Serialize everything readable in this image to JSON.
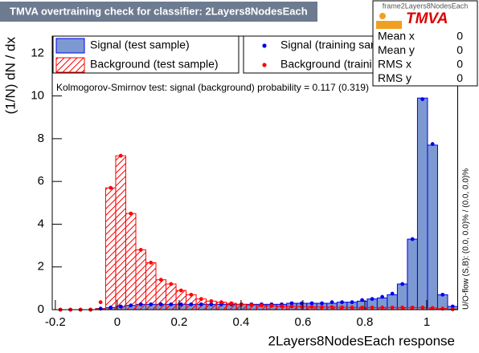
{
  "chart_data": {
    "type": "histogram",
    "title": "TMVA overtraining check for classifier: 2Layers8NodesEach",
    "x_label": "2Layers8NodesEach response",
    "y_label": "(1/N) dN / dx",
    "annotation": "Kolmogorov-Smirnov test: signal (background) probability = 0.117 (0.319)",
    "side_note": "U/O-flow (S,B): (0.0, 0.0)% / (0.0, 0.0)%",
    "xlim": [
      -0.21,
      1.1
    ],
    "ylim": [
      0,
      12.8
    ],
    "xticks": [
      -0.2,
      0,
      0.2,
      0.4,
      0.6,
      0.8,
      1
    ],
    "yticks": [
      0,
      2,
      4,
      6,
      8,
      10,
      12
    ],
    "bins": [
      -0.2,
      -0.1675,
      -0.135,
      -0.1025,
      -0.07,
      -0.0375,
      -0.005,
      0.0275,
      0.06,
      0.0925,
      0.125,
      0.1575,
      0.19,
      0.2225,
      0.255,
      0.2875,
      0.32,
      0.3525,
      0.385,
      0.4175,
      0.45,
      0.4825,
      0.515,
      0.5475,
      0.58,
      0.6125,
      0.645,
      0.6775,
      0.71,
      0.7425,
      0.775,
      0.8075,
      0.84,
      0.8725,
      0.905,
      0.9375,
      0.97,
      1.0025,
      1.035,
      1.0675,
      1.1
    ],
    "series": [
      {
        "name": "Signal (test sample)",
        "style": "filled",
        "color": "#0000ee",
        "fill": "#7d99d1",
        "values": [
          0,
          0,
          0,
          0,
          0.05,
          0.1,
          0.15,
          0.2,
          0.25,
          0.25,
          0.25,
          0.25,
          0.25,
          0.25,
          0.25,
          0.25,
          0.25,
          0.25,
          0.25,
          0.25,
          0.25,
          0.25,
          0.25,
          0.3,
          0.3,
          0.3,
          0.3,
          0.3,
          0.35,
          0.35,
          0.4,
          0.5,
          0.55,
          0.7,
          1.2,
          3.3,
          9.9,
          7.7,
          0.7,
          0.15
        ]
      },
      {
        "name": "Background (test sample)",
        "style": "hatched",
        "color": "#ff0000",
        "values": [
          0,
          0,
          0,
          0,
          0.05,
          5.7,
          7.2,
          4.5,
          2.8,
          2.2,
          1.4,
          1.2,
          0.9,
          0.7,
          0.5,
          0.4,
          0.35,
          0.3,
          0.25,
          0.22,
          0.2,
          0.18,
          0.16,
          0.15,
          0.14,
          0.13,
          0.12,
          0.12,
          0.11,
          0.1,
          0.1,
          0.1,
          0.1,
          0.1,
          0.1,
          0.1,
          0.1,
          0.08,
          0.05,
          0.02
        ]
      },
      {
        "name": "Signal (training sample)",
        "style": "points",
        "color": "#0000ee",
        "values": [
          0,
          0,
          0,
          0,
          0.05,
          0.1,
          0.15,
          0.2,
          0.25,
          0.25,
          0.25,
          0.25,
          0.25,
          0.25,
          0.25,
          0.25,
          0.25,
          0.25,
          0.25,
          0.25,
          0.25,
          0.25,
          0.25,
          0.3,
          0.3,
          0.3,
          0.3,
          0.35,
          0.35,
          0.35,
          0.45,
          0.5,
          0.6,
          0.75,
          1.2,
          3.3,
          9.85,
          7.75,
          0.7,
          0.15
        ]
      },
      {
        "name": "Background (training sample)",
        "style": "points",
        "color": "#ff0000",
        "values": [
          0,
          0,
          0,
          0,
          0.35,
          5.7,
          7.2,
          4.5,
          2.8,
          2.2,
          1.4,
          1.2,
          0.9,
          0.7,
          0.5,
          0.4,
          0.35,
          0.3,
          0.25,
          0.22,
          0.2,
          0.18,
          0.16,
          0.15,
          0.14,
          0.13,
          0.12,
          0.12,
          0.11,
          0.1,
          0.1,
          0.1,
          0.1,
          0.1,
          0.1,
          0.1,
          0.1,
          0.08,
          0.05,
          0.02
        ]
      }
    ],
    "stats": {
      "title": "frame2Layers8NodesEach",
      "logo": "TMVA",
      "rows": [
        {
          "label": "Mean x",
          "value": 0
        },
        {
          "label": "Mean y",
          "value": 0
        },
        {
          "label": "RMS x",
          "value": 0
        },
        {
          "label": "RMS y",
          "value": 0
        }
      ]
    }
  }
}
